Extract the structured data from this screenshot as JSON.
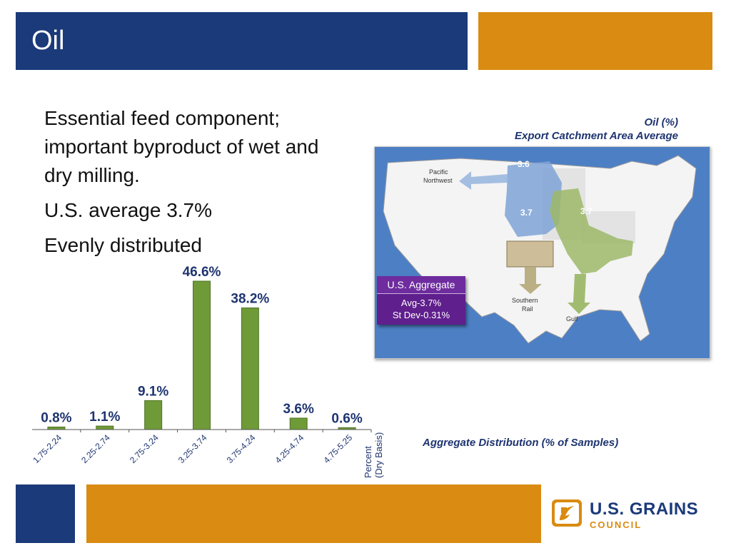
{
  "slide": {
    "title": "Oil",
    "bullets": [
      "Essential feed component; important byproduct of wet and dry milling.",
      "U.S. average 3.7%",
      "Evenly distributed"
    ],
    "colors": {
      "navy": "#1b3a7a",
      "orange": "#d98b12",
      "bar_green": "#6f9a38",
      "map_purple": "#5f1f8c"
    }
  },
  "map": {
    "caption_line1": "Oil (%)",
    "caption_line2": "Export Catchment Area Average",
    "regions": [
      {
        "name": "Pacific Northwest",
        "line1": "Pacific",
        "line2": "Northwest",
        "value": "3.6"
      },
      {
        "name": "Southern Rail",
        "line1": "Southern",
        "line2": "Rail",
        "value": "3.7"
      },
      {
        "name": "Gulf",
        "line1": "Gulf",
        "line2": "",
        "value": "3.7"
      }
    ],
    "aggregate": {
      "heading": "U.S. Aggregate",
      "avg": "Avg-3.7%",
      "stdev": "St Dev-0.31%"
    }
  },
  "chart_data": {
    "type": "bar",
    "title": "Aggregate Distribution (% of Samples)",
    "xlabel_line1": "Percent",
    "xlabel_line2": "(Dry Basis)",
    "categories": [
      "1.75-2.24",
      "2.25-2.74",
      "2.75-3.24",
      "3.25-3.74",
      "3.75-4.24",
      "4.25-4.74",
      "4.75-5.25"
    ],
    "values": [
      0.8,
      1.1,
      9.1,
      46.6,
      38.2,
      3.6,
      0.6
    ],
    "data_labels": [
      "0.8%",
      "1.1%",
      "9.1%",
      "46.6%",
      "38.2%",
      "3.6%",
      "0.6%"
    ],
    "ylim": [
      0,
      46.6
    ],
    "grid": false,
    "legend": "none"
  },
  "footer": {
    "logo_line1": "U.S. GRAINS",
    "logo_line2": "COUNCIL"
  }
}
